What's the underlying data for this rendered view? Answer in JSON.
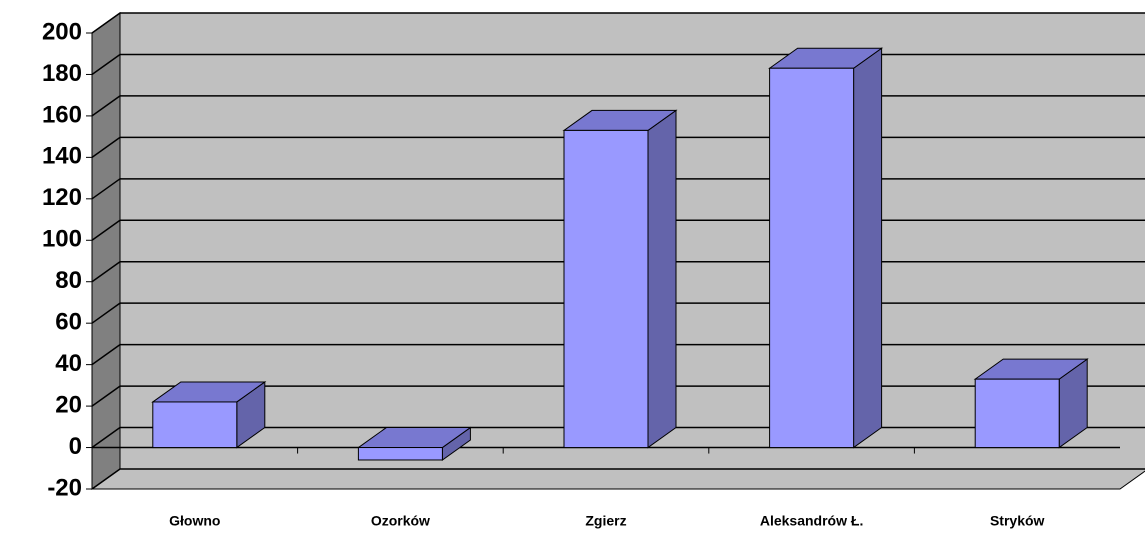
{
  "chart_data": {
    "type": "bar3d",
    "categories": [
      "Głowno",
      "Ozorków",
      "Zgierz",
      "Aleksandrów Ł.",
      "Stryków"
    ],
    "values": [
      22,
      -6,
      153,
      183,
      33
    ],
    "color": "#9999ff",
    "ylim": [
      -20,
      200
    ],
    "yticks": [
      -20,
      0,
      20,
      40,
      60,
      80,
      100,
      120,
      140,
      160,
      180,
      200
    ],
    "grid": true
  }
}
